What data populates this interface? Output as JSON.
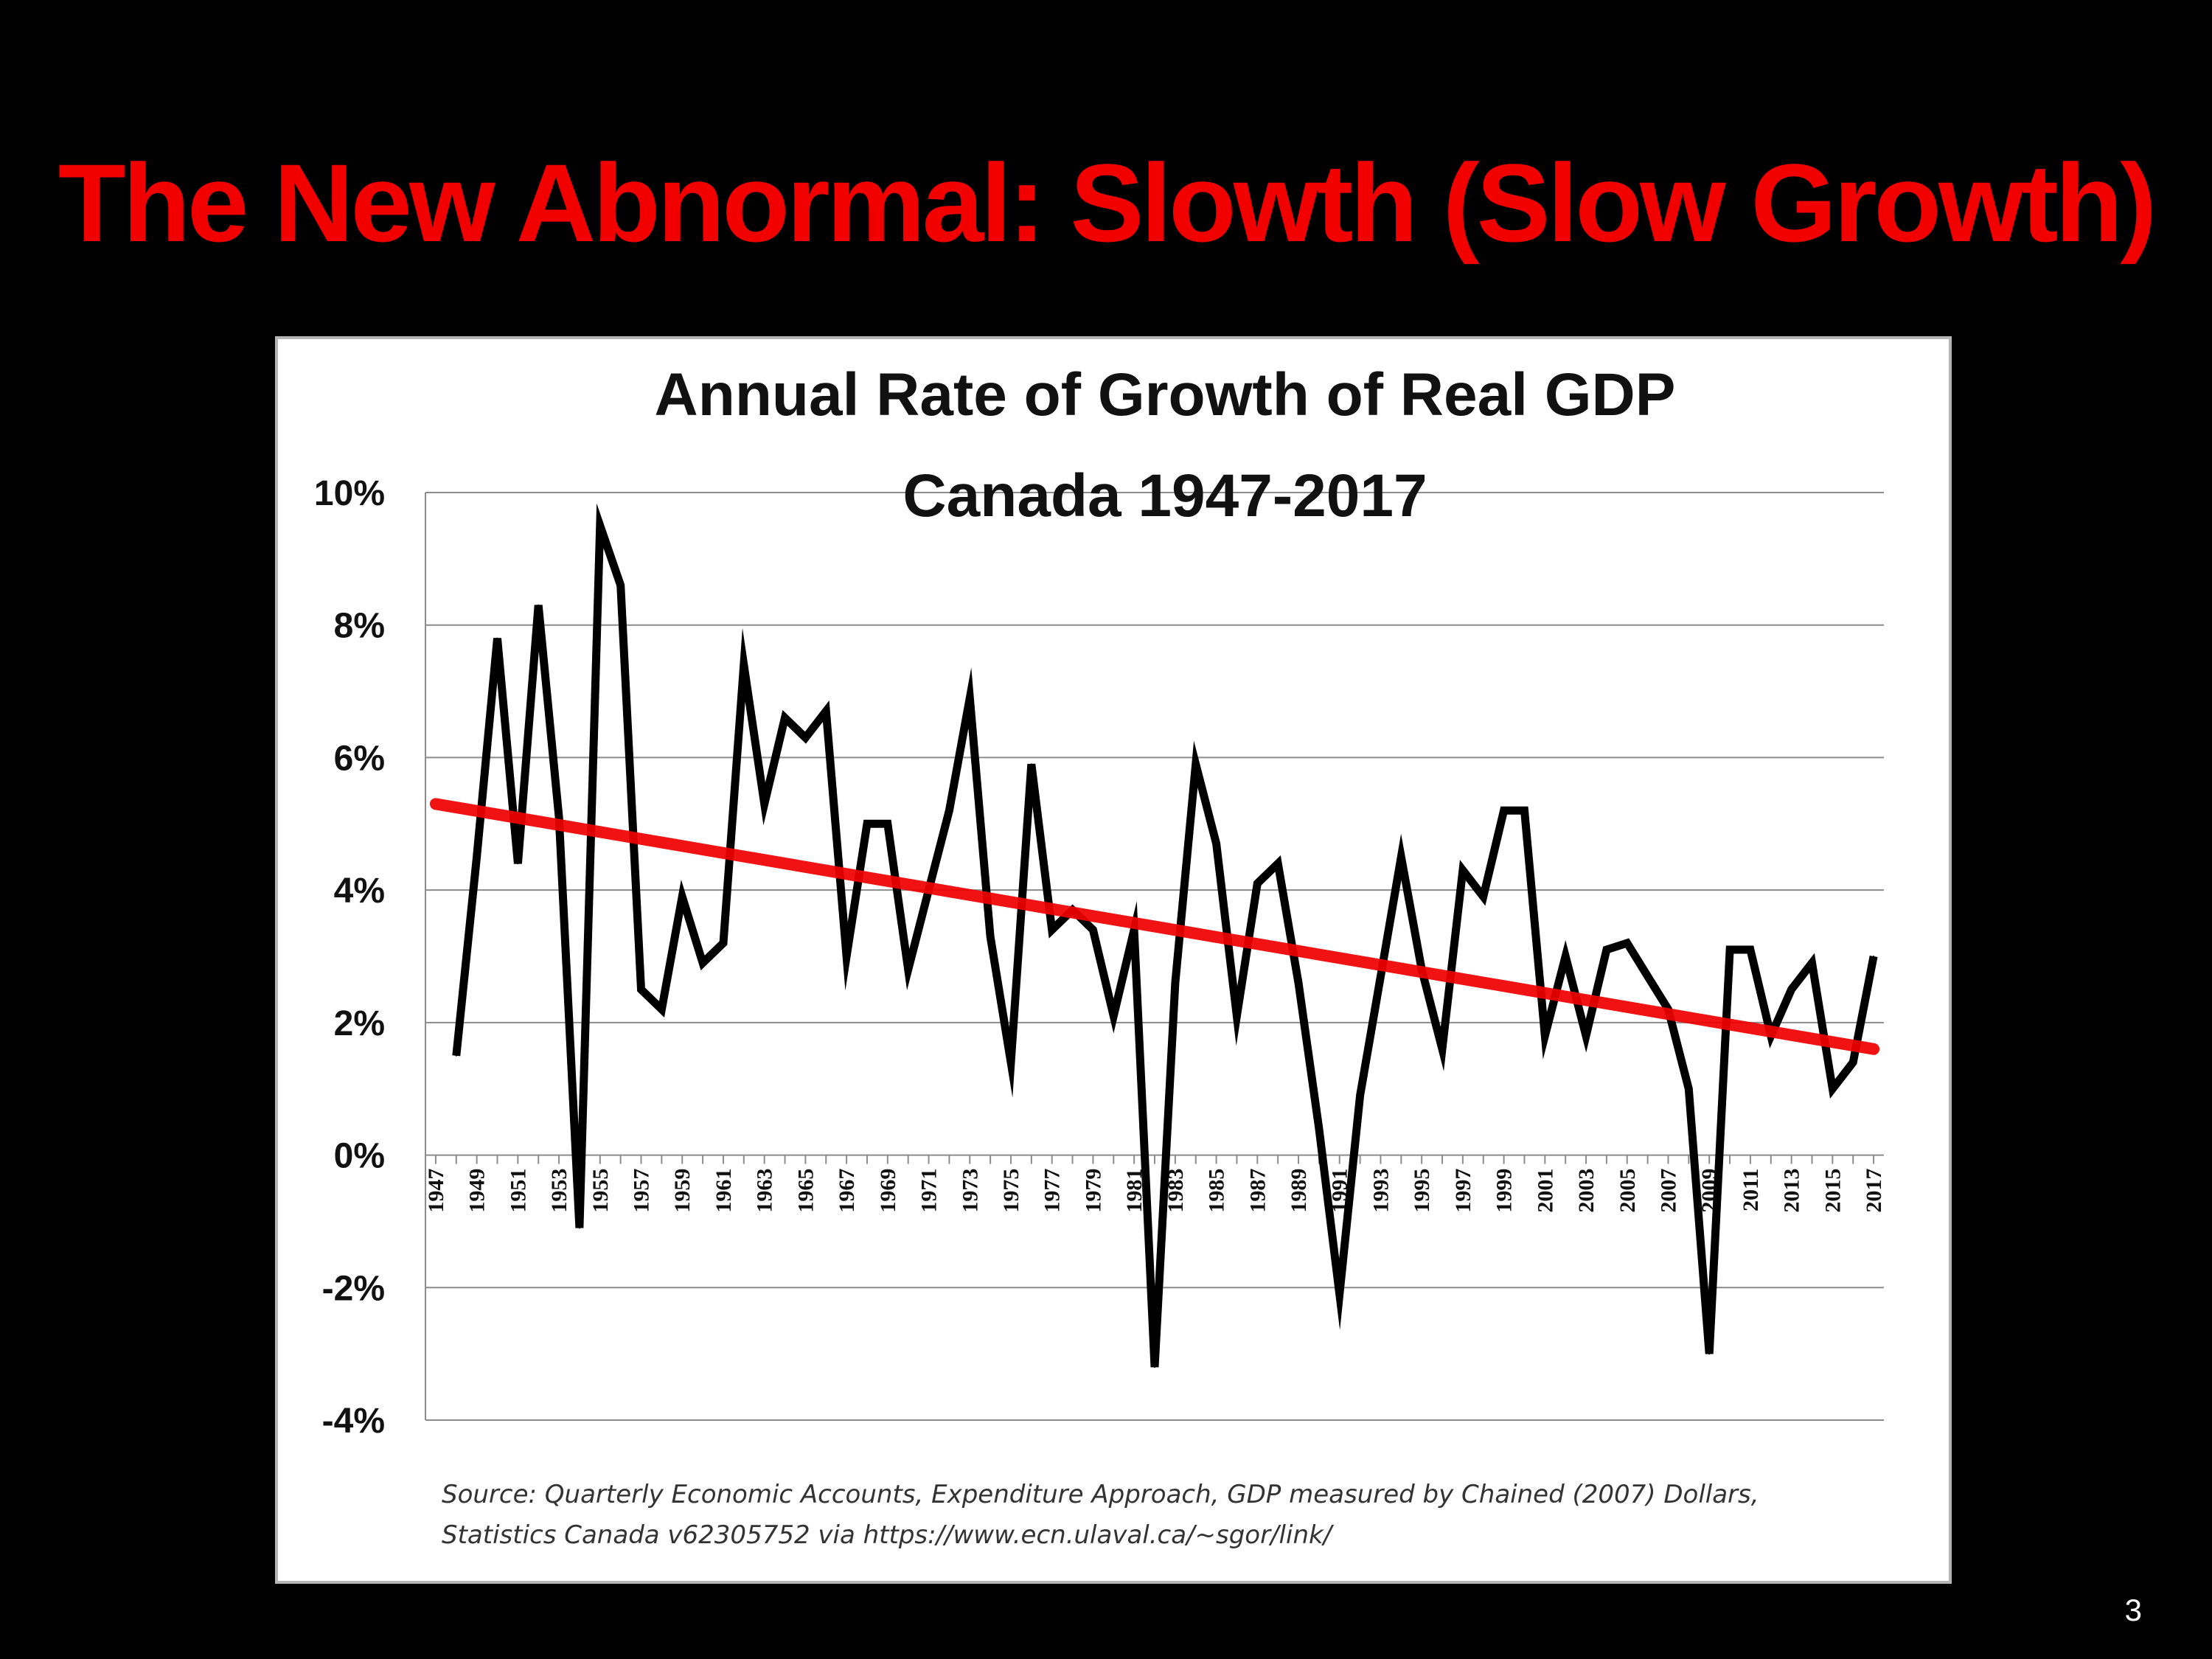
{
  "slide": {
    "title": "The New Abnormal:  Slowth (Slow Growth)",
    "page_number": "3"
  },
  "chart_data": {
    "type": "line",
    "title": [
      "Annual Rate of Growth of Real GDP",
      "Canada 1947-2017"
    ],
    "xlabel": "",
    "ylabel": "",
    "ylim": [
      -4,
      10
    ],
    "yticks": [
      -4,
      -2,
      0,
      2,
      4,
      6,
      8,
      10
    ],
    "ytick_labels": [
      "-4%",
      "-2%",
      "0%",
      "2%",
      "4%",
      "6%",
      "8%",
      "10%"
    ],
    "xtick_labels": [
      "1947",
      "1949",
      "1951",
      "1953",
      "1955",
      "1957",
      "1959",
      "1961",
      "1963",
      "1965",
      "1967",
      "1969",
      "1971",
      "1973",
      "1975",
      "1977",
      "1979",
      "1981",
      "1983",
      "1985",
      "1987",
      "1989",
      "1991",
      "1993",
      "1995",
      "1997",
      "1999",
      "2001",
      "2003",
      "2005",
      "2007",
      "2009",
      "2011",
      "2013",
      "2015",
      "2017"
    ],
    "grid": "horizontal",
    "x": [
      1948,
      1949,
      1950,
      1951,
      1952,
      1953,
      1954,
      1955,
      1956,
      1957,
      1958,
      1959,
      1960,
      1961,
      1962,
      1963,
      1964,
      1965,
      1966,
      1967,
      1968,
      1969,
      1970,
      1971,
      1972,
      1973,
      1974,
      1975,
      1976,
      1977,
      1978,
      1979,
      1980,
      1981,
      1982,
      1983,
      1984,
      1985,
      1986,
      1987,
      1988,
      1989,
      1990,
      1991,
      1992,
      1993,
      1994,
      1995,
      1996,
      1997,
      1998,
      1999,
      2000,
      2001,
      2002,
      2003,
      2004,
      2005,
      2006,
      2007,
      2008,
      2009,
      2010,
      2011,
      2012,
      2013,
      2014,
      2015,
      2016,
      2017
    ],
    "series": [
      {
        "color": "#000000",
        "values": [
          1.5,
          4.5,
          7.8,
          4.4,
          8.3,
          5.1,
          -1.1,
          9.5,
          8.6,
          2.5,
          2.2,
          3.9,
          2.9,
          3.2,
          7.4,
          5.3,
          6.6,
          6.3,
          6.7,
          3.0,
          5.0,
          5.0,
          2.8,
          4.0,
          5.2,
          6.9,
          3.3,
          1.4,
          5.9,
          3.4,
          3.7,
          3.4,
          2.1,
          3.4,
          -3.2,
          2.6,
          5.9,
          4.7,
          2.1,
          4.1,
          4.4,
          2.6,
          0.4,
          -2.1,
          0.9,
          2.7,
          4.5,
          2.8,
          1.6,
          4.3,
          3.9,
          5.2,
          5.2,
          1.8,
          3.0,
          1.8,
          3.1,
          3.2,
          2.7,
          2.2,
          1.0,
          -3.0,
          3.1,
          3.1,
          1.8,
          2.5,
          2.9,
          1.0,
          1.4,
          3.0
        ]
      }
    ],
    "trendline": {
      "color": "#f00000",
      "x": [
        1947,
        2017
      ],
      "y": [
        5.3,
        1.6
      ]
    },
    "source": [
      "Source: Quarterly Economic Accounts, Expenditure Approach,  GDP measured by Chained (2007) Dollars,",
      "Statistics Canada v62305752  via https://www.ecn.ulaval.ca/~sgor/link/"
    ]
  }
}
